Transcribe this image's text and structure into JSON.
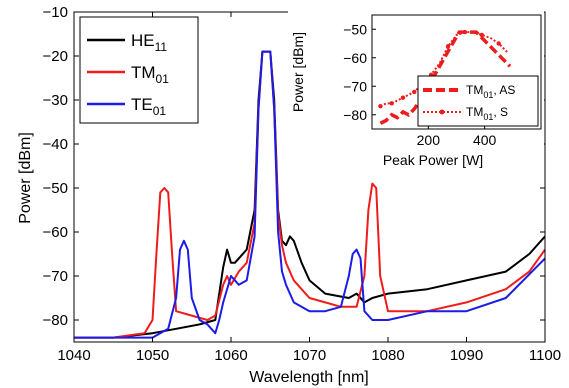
{
  "chart_data": [
    {
      "type": "line",
      "title": "",
      "xlabel": "Wavelength [nm]",
      "ylabel": "Power [dBm]",
      "xlim": [
        1040,
        1100
      ],
      "ylim": [
        -85,
        -10
      ],
      "xticks": [
        "1040",
        "1050",
        "1060",
        "1070",
        "1080",
        "1090",
        "1100"
      ],
      "yticks": [
        "−10",
        "−20",
        "−30",
        "−40",
        "−50",
        "−60",
        "−70",
        "−80"
      ],
      "legend_position": "top-left",
      "grid": false,
      "series": [
        {
          "name": "HE",
          "name_sub": "11",
          "color": "#000000",
          "x": [
            1040,
            1045,
            1050,
            1053,
            1056,
            1058,
            1059,
            1059.5,
            1060,
            1060.5,
            1061,
            1062,
            1063,
            1063.5,
            1064,
            1064.5,
            1065,
            1065.5,
            1066,
            1066.5,
            1067,
            1067.5,
            1068,
            1069,
            1070,
            1072,
            1075,
            1076,
            1077,
            1078,
            1080,
            1085,
            1090,
            1095,
            1098,
            1100
          ],
          "y": [
            -84,
            -84,
            -83,
            -82,
            -81,
            -80,
            -68,
            -64,
            -67,
            -67,
            -66,
            -64,
            -55,
            -30,
            -19,
            -19,
            -19,
            -30,
            -55,
            -62,
            -63,
            -61,
            -62,
            -67,
            -71,
            -74,
            -75,
            -74,
            -76,
            -75,
            -74,
            -73,
            -71,
            -69,
            -65,
            -61
          ]
        },
        {
          "name": "TM",
          "name_sub": "01",
          "color": "#ee1c1c",
          "x": [
            1040,
            1045,
            1049,
            1050,
            1050.5,
            1051,
            1051.5,
            1052,
            1052.5,
            1053,
            1055,
            1057,
            1058,
            1059,
            1059.5,
            1060,
            1061,
            1062,
            1063,
            1063.5,
            1064,
            1064.5,
            1065,
            1065.5,
            1066,
            1066.5,
            1067,
            1068,
            1069,
            1070,
            1072,
            1074,
            1076,
            1077,
            1077.5,
            1078,
            1078.5,
            1079,
            1080,
            1085,
            1090,
            1095,
            1098,
            1100
          ],
          "y": [
            -84,
            -84,
            -83,
            -80,
            -65,
            -51,
            -50,
            -51,
            -65,
            -78,
            -79,
            -80,
            -79,
            -72,
            -70,
            -72,
            -69,
            -67,
            -58,
            -32,
            -19,
            -19,
            -19,
            -32,
            -56,
            -63,
            -67,
            -71,
            -73,
            -75,
            -76,
            -77,
            -77,
            -70,
            -55,
            -49,
            -50,
            -70,
            -78,
            -78,
            -76,
            -73,
            -69,
            -64
          ]
        },
        {
          "name": "TE",
          "name_sub": "01",
          "color": "#1c1ce6",
          "x": [
            1040,
            1045,
            1050,
            1052,
            1053,
            1053.5,
            1054,
            1054.5,
            1055,
            1056,
            1057,
            1058,
            1058.5,
            1059,
            1060,
            1061,
            1062,
            1063,
            1063.5,
            1064,
            1064.5,
            1065,
            1065.5,
            1066,
            1066.5,
            1067,
            1068,
            1070,
            1072,
            1074,
            1075,
            1075.5,
            1076,
            1076.5,
            1077,
            1078,
            1080,
            1085,
            1090,
            1095,
            1100
          ],
          "y": [
            -84,
            -84,
            -84,
            -82,
            -75,
            -64,
            -62,
            -64,
            -75,
            -80,
            -81,
            -83,
            -80,
            -76,
            -70,
            -72,
            -71,
            -61,
            -32,
            -19,
            -19,
            -19,
            -32,
            -60,
            -69,
            -72,
            -76,
            -78,
            -78,
            -77,
            -70,
            -65,
            -64,
            -66,
            -78,
            -80,
            -80,
            -78,
            -78,
            -75,
            -66
          ]
        }
      ]
    },
    {
      "type": "line",
      "title": "",
      "xlabel": "Peak Power [W]",
      "ylabel": "Power [dBm]",
      "xlim": [
        0,
        600
      ],
      "ylim": [
        -85,
        -45
      ],
      "xticks": [
        "200",
        "400"
      ],
      "yticks": [
        "−50",
        "−60",
        "−70",
        "−80"
      ],
      "legend_position": "bottom-right",
      "grid": false,
      "series": [
        {
          "name": "TM",
          "name_sub": "01",
          "name_suffix": ", AS",
          "color": "#ee1c1c",
          "style": "dashed",
          "x": [
            30,
            50,
            70,
            90,
            110,
            130,
            150,
            170,
            200,
            240,
            280,
            310,
            340,
            370,
            400,
            430,
            460,
            490
          ],
          "y": [
            -83,
            -82,
            -80,
            -81,
            -79,
            -80,
            -78,
            -75,
            -70,
            -63,
            -56,
            -51,
            -51,
            -51,
            -54,
            -57,
            -60,
            -63
          ]
        },
        {
          "name": "TM",
          "name_sub": "01",
          "name_suffix": ", S",
          "color": "#ee1c1c",
          "style": "dotted",
          "x": [
            30,
            50,
            70,
            90,
            110,
            130,
            150,
            180,
            210,
            240,
            270,
            300,
            330,
            360,
            390,
            420,
            450,
            480
          ],
          "y": [
            -77,
            -76,
            -76,
            -75,
            -74,
            -73,
            -72,
            -69,
            -66,
            -62,
            -56,
            -52,
            -51,
            -51,
            -52,
            -53,
            -55,
            -58
          ]
        }
      ]
    }
  ]
}
